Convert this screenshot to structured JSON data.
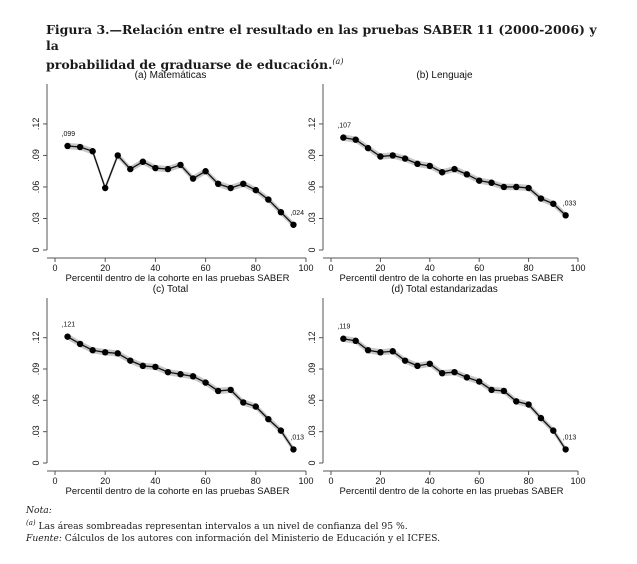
{
  "caption": {
    "title_line1": "Figura 3.—Relación entre el resultado en las pruebas SABER 11 (2000-2006) y la",
    "title_line2": "probabilidad de graduarse de educación.",
    "title_sup": "(a)"
  },
  "notes": {
    "nota_label": "Nota:",
    "footnote_marker": "(a)",
    "footnote_text": " Las áreas sombreadas representan intervalos a un nivel de confianza del 95 %.",
    "fuente_label": "Fuente:",
    "fuente_text": " Cálculos de los autores con información del Ministerio de Educación y el ICFES."
  },
  "chart_data": [
    {
      "type": "line",
      "title": "(a) Matemáticas",
      "xlabel": "Percentil dentro de la cohorte en las pruebas SABER",
      "ylabel": "",
      "xlim": [
        0,
        100
      ],
      "ylim": [
        0,
        0.158
      ],
      "xticks": [
        0,
        20,
        40,
        60,
        80,
        100
      ],
      "xtick_labels": [
        "0",
        "20",
        "40",
        "60",
        "80",
        "100"
      ],
      "yticks": [
        0,
        0.03,
        0.06,
        0.09,
        0.12
      ],
      "ytick_labels": [
        "0",
        ".03",
        ".06",
        ".09",
        ".12"
      ],
      "grid": false,
      "band": "95% confidence interval (shaded)",
      "x": [
        5,
        10,
        15,
        20,
        25,
        30,
        35,
        40,
        45,
        50,
        55,
        60,
        65,
        70,
        75,
        80,
        85,
        90,
        95
      ],
      "y": [
        0.099,
        0.098,
        0.094,
        0.059,
        0.09,
        0.077,
        0.084,
        0.078,
        0.077,
        0.081,
        0.068,
        0.075,
        0.063,
        0.059,
        0.063,
        0.057,
        0.048,
        0.036,
        0.024
      ],
      "annotations": [
        {
          "x": 5,
          "y": 0.099,
          "text": ",099",
          "position": "above"
        },
        {
          "x": 95,
          "y": 0.024,
          "text": ",024",
          "position": "above-right"
        }
      ]
    },
    {
      "type": "line",
      "title": "(b) Lenguaje",
      "xlabel": "Percentil dentro de la cohorte en las pruebas SABER",
      "ylabel": "",
      "xlim": [
        0,
        100
      ],
      "ylim": [
        0,
        0.158
      ],
      "xticks": [
        0,
        20,
        40,
        60,
        80,
        100
      ],
      "xtick_labels": [
        "0",
        "20",
        "40",
        "60",
        "80",
        "100"
      ],
      "yticks": [
        0,
        0.03,
        0.06,
        0.09,
        0.12
      ],
      "ytick_labels": [
        "0",
        ".03",
        ".06",
        ".09",
        ".12"
      ],
      "grid": false,
      "band": "95% confidence interval (shaded)",
      "x": [
        5,
        10,
        15,
        20,
        25,
        30,
        35,
        40,
        45,
        50,
        55,
        60,
        65,
        70,
        75,
        80,
        85,
        90,
        95
      ],
      "y": [
        0.107,
        0.105,
        0.097,
        0.089,
        0.09,
        0.087,
        0.082,
        0.08,
        0.074,
        0.077,
        0.072,
        0.066,
        0.064,
        0.06,
        0.06,
        0.059,
        0.049,
        0.044,
        0.033
      ],
      "annotations": [
        {
          "x": 5,
          "y": 0.107,
          "text": ",107",
          "position": "above"
        },
        {
          "x": 95,
          "y": 0.033,
          "text": ",033",
          "position": "above-right"
        }
      ]
    },
    {
      "type": "line",
      "title": "(c) Total",
      "xlabel": "Percentil dentro de la cohorte en las pruebas SABER",
      "ylabel": "",
      "xlim": [
        0,
        100
      ],
      "ylim": [
        0,
        0.158
      ],
      "xticks": [
        0,
        20,
        40,
        60,
        80,
        100
      ],
      "xtick_labels": [
        "0",
        "20",
        "40",
        "60",
        "80",
        "100"
      ],
      "yticks": [
        0,
        0.03,
        0.06,
        0.09,
        0.12
      ],
      "ytick_labels": [
        "0",
        ".03",
        ".06",
        ".09",
        ".12"
      ],
      "grid": false,
      "band": "95% confidence interval (shaded)",
      "x": [
        5,
        10,
        15,
        20,
        25,
        30,
        35,
        40,
        45,
        50,
        55,
        60,
        65,
        70,
        75,
        80,
        85,
        90,
        95
      ],
      "y": [
        0.121,
        0.114,
        0.108,
        0.106,
        0.105,
        0.098,
        0.093,
        0.092,
        0.087,
        0.085,
        0.083,
        0.077,
        0.069,
        0.07,
        0.058,
        0.054,
        0.042,
        0.031,
        0.013
      ],
      "annotations": [
        {
          "x": 5,
          "y": 0.121,
          "text": ",121",
          "position": "above"
        },
        {
          "x": 95,
          "y": 0.013,
          "text": ",013",
          "position": "above-right"
        }
      ]
    },
    {
      "type": "line",
      "title": "(d) Total estandarizadas",
      "xlabel": "Percentil dentro de la cohorte en las pruebas SABER",
      "ylabel": "",
      "xlim": [
        0,
        100
      ],
      "ylim": [
        0,
        0.158
      ],
      "xticks": [
        0,
        20,
        40,
        60,
        80,
        100
      ],
      "xtick_labels": [
        "0",
        "20",
        "40",
        "60",
        "80",
        "100"
      ],
      "yticks": [
        0,
        0.03,
        0.06,
        0.09,
        0.12
      ],
      "ytick_labels": [
        "0",
        ".03",
        ".06",
        ".09",
        ".12"
      ],
      "grid": false,
      "band": "95% confidence interval (shaded)",
      "x": [
        5,
        10,
        15,
        20,
        25,
        30,
        35,
        40,
        45,
        50,
        55,
        60,
        65,
        70,
        75,
        80,
        85,
        90,
        95
      ],
      "y": [
        0.119,
        0.117,
        0.108,
        0.106,
        0.107,
        0.098,
        0.093,
        0.095,
        0.086,
        0.087,
        0.082,
        0.078,
        0.07,
        0.069,
        0.059,
        0.056,
        0.043,
        0.031,
        0.013
      ],
      "annotations": [
        {
          "x": 5,
          "y": 0.119,
          "text": ",119",
          "position": "above"
        },
        {
          "x": 95,
          "y": 0.013,
          "text": ",013",
          "position": "above-right"
        }
      ]
    }
  ],
  "colors": {
    "line": "#111111",
    "marker": "#000000",
    "band": "#c8c8c8",
    "axis": "#555555"
  }
}
